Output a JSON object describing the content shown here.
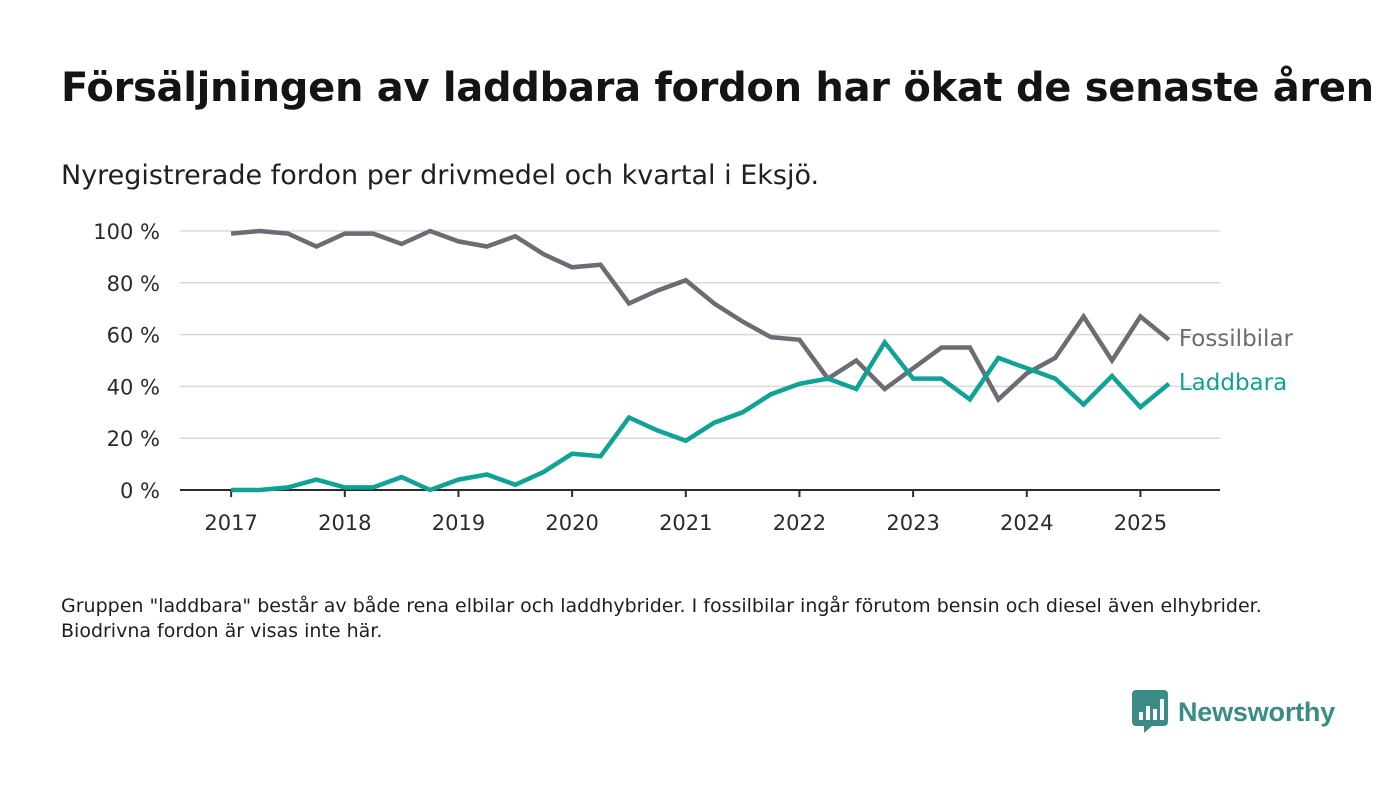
{
  "title": "Försäljningen av laddbara fordon har ökat de senaste åren",
  "subtitle": "Nyregistrerade fordon per drivmedel och kvartal i Eksjö.",
  "footnote": "Gruppen \"laddbara\" består av både rena elbilar och laddhybrider. I fossilbilar ingår förutom bensin och diesel även elhybrider. Biodrivna fordon är visas inte här.",
  "logo": {
    "text": "Newsworthy",
    "icon": "bar-chart-icon",
    "color": "#3a8c85"
  },
  "chart_data": {
    "type": "line",
    "x": [
      2017.0,
      2017.25,
      2017.5,
      2017.75,
      2018.0,
      2018.25,
      2018.5,
      2018.75,
      2019.0,
      2019.25,
      2019.5,
      2019.75,
      2020.0,
      2020.25,
      2020.5,
      2020.75,
      2021.0,
      2021.25,
      2021.5,
      2021.75,
      2022.0,
      2022.25,
      2022.5,
      2022.75,
      2023.0,
      2023.25,
      2023.5,
      2023.75,
      2024.0,
      2024.25,
      2024.5,
      2024.75,
      2025.0,
      2025.25
    ],
    "xlim": [
      2016.55,
      2025.7
    ],
    "xticks": [
      "2017",
      "2018",
      "2019",
      "2020",
      "2021",
      "2022",
      "2023",
      "2024",
      "2025"
    ],
    "ylim": [
      0,
      100
    ],
    "yticks": [
      "0 %",
      "20 %",
      "40 %",
      "60 %",
      "80 %",
      "100 %"
    ],
    "grid": true,
    "series": [
      {
        "name": "Fossilbilar",
        "color": "#6d6b73",
        "values": [
          99,
          100,
          99,
          94,
          99,
          99,
          95,
          100,
          96,
          94,
          98,
          91,
          86,
          87,
          72,
          77,
          81,
          72,
          65,
          59,
          58,
          43,
          50,
          39,
          47,
          55,
          55,
          35,
          45,
          51,
          67,
          50,
          67,
          58
        ]
      },
      {
        "name": "Laddbara",
        "color": "#10a294",
        "values": [
          0,
          0,
          1,
          4,
          1,
          1,
          5,
          0,
          4,
          6,
          2,
          7,
          14,
          13,
          28,
          23,
          19,
          26,
          30,
          37,
          41,
          43,
          39,
          57,
          43,
          43,
          35,
          51,
          47,
          43,
          33,
          44,
          32,
          41
        ]
      }
    ]
  }
}
